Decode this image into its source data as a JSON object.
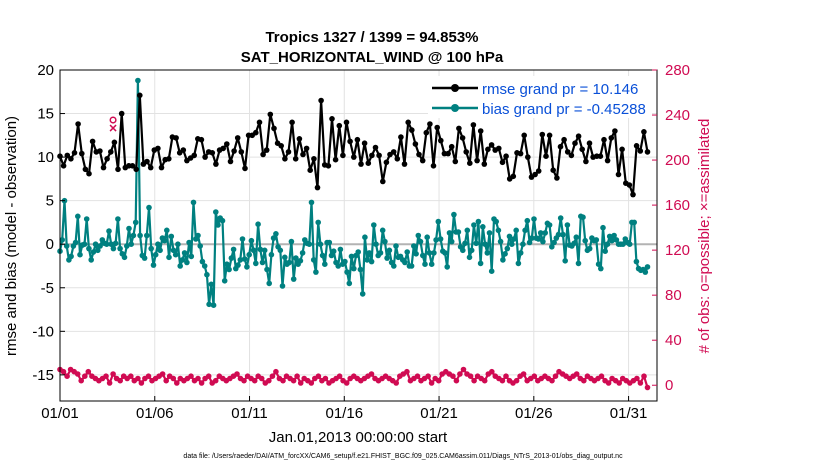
{
  "chart_data": {
    "type": "line",
    "title_line1": "Tropics 1327 / 1399 = 94.853%",
    "title_line2": "SAT_HORIZONTAL_WIND @ 100 hPa",
    "xlabel": "Jan.01,2013 00:00:00 start",
    "ylabel_left": "rmse and bias (model - observation)",
    "ylabel_right": "# of obs: o=possible; ×=assimilated",
    "footer": "data file: /Users/raeder/DAI/ATM_forcXX/CAM6_setup/f.e21.FHIST_BGC.f09_025.CAM6assim.011/Diags_NTrS_2013-01/obs_diag_output.nc",
    "x_ticks": [
      {
        "label": "01/01",
        "day": 1
      },
      {
        "label": "01/06",
        "day": 6
      },
      {
        "label": "01/11",
        "day": 11
      },
      {
        "label": "01/16",
        "day": 16
      },
      {
        "label": "01/21",
        "day": 21
      },
      {
        "label": "01/26",
        "day": 26
      },
      {
        "label": "01/31",
        "day": 31
      }
    ],
    "xlim": [
      1,
      32.5
    ],
    "ylim_left": [
      -18,
      20
    ],
    "yticks_left": [
      "20",
      "15",
      "10",
      "5",
      "0",
      "-5",
      "-10",
      "-15"
    ],
    "ylim_right": [
      -14,
      280
    ],
    "yticks_right": [
      "280",
      "240",
      "200",
      "160",
      "120",
      "80",
      "40",
      "0"
    ],
    "colors": {
      "rmse": "#000000",
      "bias": "#008080",
      "obs": "#d00b52",
      "legend_text": "#0a50d8",
      "zero_line": "#b3b3b3",
      "grid": "#e2e2e2"
    },
    "series": [
      {
        "name": "rmse grand pr = 10.146",
        "values": [
          10.1,
          9.0,
          10.2,
          9.8,
          10.5,
          13.8,
          10.4,
          8.6,
          8.1,
          11.8,
          10.6,
          10.7,
          8.8,
          9.8,
          10.6,
          11.7,
          8.6,
          15.0,
          8.8,
          9.0,
          9.0,
          8.6,
          17.1,
          9.2,
          9.5,
          8.8,
          10.8,
          11.0,
          8.8,
          9.7,
          9.8,
          12.3,
          12.2,
          10.5,
          10.8,
          9.6,
          9.9,
          10.2,
          12.1,
          12.0,
          10.0,
          10.6,
          10.5,
          9.2,
          10.8,
          11.0,
          11.5,
          9.5,
          10.7,
          12.2,
          10.6,
          8.7,
          12.5,
          12.5,
          12.8,
          14.0,
          10.3,
          10.8,
          14.9,
          13.3,
          11.6,
          11.3,
          9.8,
          10.6,
          14.0,
          9.8,
          12.1,
          10.3,
          11.0,
          8.5,
          9.8,
          6.5,
          16.5,
          9.1,
          9.0,
          14.4,
          9.7,
          13.6,
          10.2,
          14.0,
          11.8,
          10.0,
          12.0,
          9.2,
          11.6,
          9.3,
          10.2,
          11.1,
          10.2,
          7.2,
          9.4,
          10.3,
          10.6,
          9.8,
          12.3,
          9.2,
          14.0,
          13.1,
          11.5,
          10.3,
          9.6,
          12.8,
          13.8,
          9.0,
          13.4,
          11.9,
          10.4,
          10.4,
          11.2,
          9.5,
          13.3,
          12.2,
          10.6,
          9.3,
          13.7,
          9.6,
          13.0,
          9.2,
          10.9,
          11.4,
          10.8,
          11.0,
          9.4,
          10.1,
          7.5,
          7.8,
          10.5,
          10.4,
          12.5,
          10.0,
          7.7,
          8.0,
          8.4,
          12.6,
          10.1,
          12.5,
          8.5,
          7.6,
          11.2,
          12.0,
          10.6,
          10.2,
          11.6,
          12.4,
          10.9,
          9.5,
          11.6,
          10.0,
          10.1,
          10.1,
          12.0,
          9.6,
          12.2,
          13.0,
          8.0,
          10.9,
          7.0,
          6.8,
          5.7,
          11.3,
          10.7,
          12.9,
          10.6
        ],
        "color": "#000000"
      },
      {
        "name": "bias grand pr = -0.45288",
        "values": [
          -0.8,
          0.5,
          5.0,
          -0.2,
          -1.8,
          -1.4,
          -0.2,
          0.2,
          3.2,
          -1.2,
          -0.1,
          0.0,
          2.9,
          -0.5,
          -1.8,
          -0.9,
          0.0,
          -0.7,
          -0.2,
          0.5,
          0.1,
          0.0,
          1.5,
          0.0,
          -0.5,
          0.1,
          2.9,
          -0.5,
          -1.1,
          -1.5,
          -0.2,
          1.8,
          0.0,
          1.0,
          2.5,
          18.8,
          1.0,
          -1.3,
          -1.6,
          1.0,
          4.2,
          -0.5,
          -2.4,
          -1.2,
          0.0,
          -0.7,
          0.7,
          0.4,
          1.6,
          -1.5,
          0.9,
          -0.7,
          -1.2,
          0.0,
          -2.5,
          -1.8,
          -1.0,
          -2.1,
          0.2,
          -1.4,
          4.8,
          0.6,
          1.0,
          -0.2,
          -2.0,
          -2.5,
          -3.5,
          -6.9,
          -4.6,
          -7.0,
          3.7,
          2.2,
          3.0,
          2.7,
          -4.2,
          -2.3,
          -2.9,
          -1.6,
          -0.6,
          -2.8,
          -2.4,
          -1.8,
          0.6,
          -1.7,
          -2.6,
          -1.2,
          0.4,
          -0.7,
          -2.2,
          2.3,
          -0.6,
          -2.1,
          -0.7,
          -2.9,
          -4.5,
          -1.2,
          0.7,
          1.2,
          -0.3,
          -0.7,
          -4.8,
          -1.5,
          -2.3,
          -2.1,
          0.3,
          -4.0,
          -1.6,
          -2.3,
          -1.9,
          -1.0,
          0.5,
          0.1,
          0.0,
          4.8,
          -1.8,
          -3.2,
          2.5,
          0.0,
          -1.3,
          -2.3,
          0.2,
          0.2,
          -1.3,
          -0.8,
          -2.1,
          -2.5,
          -0.6,
          -2.3,
          -2.0,
          -3.2,
          -4.5,
          -1.4,
          -2.8,
          -1.3,
          -0.9,
          -2.9,
          -5.7,
          0.8,
          -1.8,
          -1.0,
          -2.0,
          2.2,
          0.0,
          -1.3,
          -1.0,
          1.6,
          0.3,
          -1.6,
          -0.7,
          -2.1,
          -2.5,
          -0.2,
          -1.5,
          -1.4,
          -1.8,
          -2.1,
          -0.9,
          -2.5,
          -2.5,
          -0.2,
          -1.1,
          1.0,
          0.3,
          -1.3,
          -2.3,
          0.8,
          -1.0,
          -2.3,
          -1.0,
          0.5,
          2.6,
          0.6,
          -0.8,
          -1.0,
          -2.6,
          1.3,
          0.3,
          3.4,
          1.4,
          1.4,
          -0.3,
          -0.7,
          0.1,
          1.6,
          -1.5,
          -0.7,
          2.2,
          0.1,
          2.6,
          -2.2,
          2.0,
          0.0,
          -1.0,
          1.3,
          -3.1,
          2.9,
          2.6,
          1.6,
          0.3,
          -1.8,
          -1.1,
          -0.5,
          0.9,
          0.0,
          0.6,
          1.6,
          -2.2,
          -1.0,
          0.0,
          1.6,
          2.7,
          0.2,
          0.7,
          2.9,
          0.7,
          0.6,
          1.3,
          0.3,
          1.3,
          2.4,
          2.2,
          -0.3,
          0.2,
          0.7,
          1.1,
          3.0,
          1.1,
          -1.9,
          2.2,
          -0.1,
          -0.2,
          0.1,
          0.8,
          -2.2,
          3.2,
          3.1,
          0.4,
          -0.7,
          -0.5,
          0.7,
          0.4,
          0.5,
          -2.3,
          -2.8,
          1.9,
          -0.8,
          0.0,
          0.9,
          0.4,
          1.0,
          0.5,
          0.0,
          0.0,
          0.0,
          0.6,
          0.2,
          0.0,
          2.5,
          2.5,
          -2.0,
          -2.8,
          -3.0,
          -2.9,
          -3.2,
          -2.6
        ],
        "color": "#008080"
      },
      {
        "name": "# of obs possible",
        "axis": "right",
        "values": [
          14,
          12,
          8,
          14,
          12,
          10,
          4,
          8,
          12,
          8,
          6,
          4,
          6,
          8,
          2,
          10,
          6,
          4,
          8,
          6,
          8,
          4,
          6,
          2,
          6,
          8,
          4,
          6,
          8,
          10,
          4,
          8,
          6,
          2,
          6,
          4,
          6,
          8,
          4,
          6,
          2,
          6,
          8,
          2,
          4,
          8,
          6,
          4,
          6,
          8,
          10,
          6,
          4,
          8,
          6,
          4,
          8,
          6,
          2,
          4,
          8,
          12,
          6,
          4,
          8,
          6,
          4,
          8,
          2,
          6,
          4,
          2,
          6,
          8,
          4,
          6,
          2,
          4,
          6,
          8,
          4,
          2,
          6,
          8,
          6,
          4,
          6,
          8,
          10,
          6,
          4,
          6,
          8,
          6,
          4,
          2,
          8,
          10,
          12,
          4,
          6,
          8,
          4,
          6,
          8,
          2,
          6,
          4,
          10,
          12,
          10,
          8,
          4,
          10,
          14,
          10,
          8,
          4,
          8,
          6,
          4,
          10,
          12,
          8,
          6,
          4,
          8,
          4,
          2,
          4,
          8,
          10,
          4,
          6,
          8,
          4,
          6,
          8,
          6,
          4,
          8,
          12,
          10,
          8,
          6,
          8,
          10,
          6,
          4,
          8,
          6,
          4,
          6,
          8,
          4,
          2,
          6,
          4,
          2,
          6,
          4,
          2,
          4,
          6,
          2,
          8,
          -2
        ],
        "color": "#d00b52"
      }
    ],
    "outlier_marker": {
      "day": 3.8,
      "value": 232
    },
    "legend_position": "top-right"
  }
}
